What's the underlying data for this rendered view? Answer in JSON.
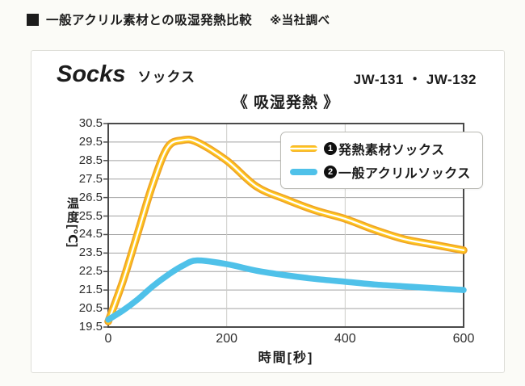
{
  "header": {
    "title": "一般アクリル素材との吸湿発熱比較",
    "note": "※当社調べ"
  },
  "card": {
    "product_en": "Socks",
    "product_ja": "ソックス",
    "model": "JW-131 ・ JW-132",
    "chart_heading": "《 吸湿発熱 》"
  },
  "legend": {
    "items": [
      {
        "badge": "1",
        "label": "発熱素材ソックス",
        "color": "#ffc61e"
      },
      {
        "badge": "2",
        "label": "一般アクリルソックス",
        "color": "#4fc1e9"
      }
    ]
  },
  "chart_data": {
    "type": "line",
    "title": "《 吸湿発熱 》",
    "xlabel": "時間[秒]",
    "ylabel": "温度[℃]",
    "ylabel_main": "温度",
    "ylabel_unit": "[℃]",
    "xlim": [
      0,
      600
    ],
    "ylim": [
      19.5,
      30.5
    ],
    "x_ticks": [
      0,
      200,
      400,
      600
    ],
    "y_ticks": [
      19.5,
      20.5,
      21.5,
      22.5,
      23.5,
      24.5,
      25.5,
      26.5,
      27.5,
      28.5,
      29.5,
      30.5
    ],
    "grid": true,
    "legend_position": "top-right",
    "style": {
      "frame": "#4a4a4a",
      "grid_h": "#a2a2a2",
      "grid_v": "#cdcdc9"
    },
    "x": [
      0,
      25,
      50,
      75,
      100,
      125,
      150,
      200,
      250,
      300,
      350,
      400,
      450,
      500,
      550,
      600
    ],
    "series": [
      {
        "name": "発熱素材ソックス",
        "values": [
          19.8,
          22.0,
          24.6,
          27.2,
          29.2,
          29.6,
          29.5,
          28.5,
          27.1,
          26.4,
          25.8,
          25.35,
          24.75,
          24.25,
          23.95,
          23.65
        ],
        "stroke_layers": [
          {
            "color": "#eea226",
            "width": 9.5
          },
          {
            "color": "#ffc61e",
            "width": 6.2
          },
          {
            "color": "#ffffff",
            "width": 2.3
          }
        ]
      },
      {
        "name": "一般アクリルソックス",
        "values": [
          19.9,
          20.4,
          21.0,
          21.7,
          22.3,
          22.8,
          23.1,
          22.9,
          22.55,
          22.3,
          22.1,
          21.95,
          21.8,
          21.7,
          21.6,
          21.5
        ],
        "stroke_layers": [
          {
            "color": "#4fc1e9",
            "width": 7.5
          }
        ]
      }
    ]
  }
}
